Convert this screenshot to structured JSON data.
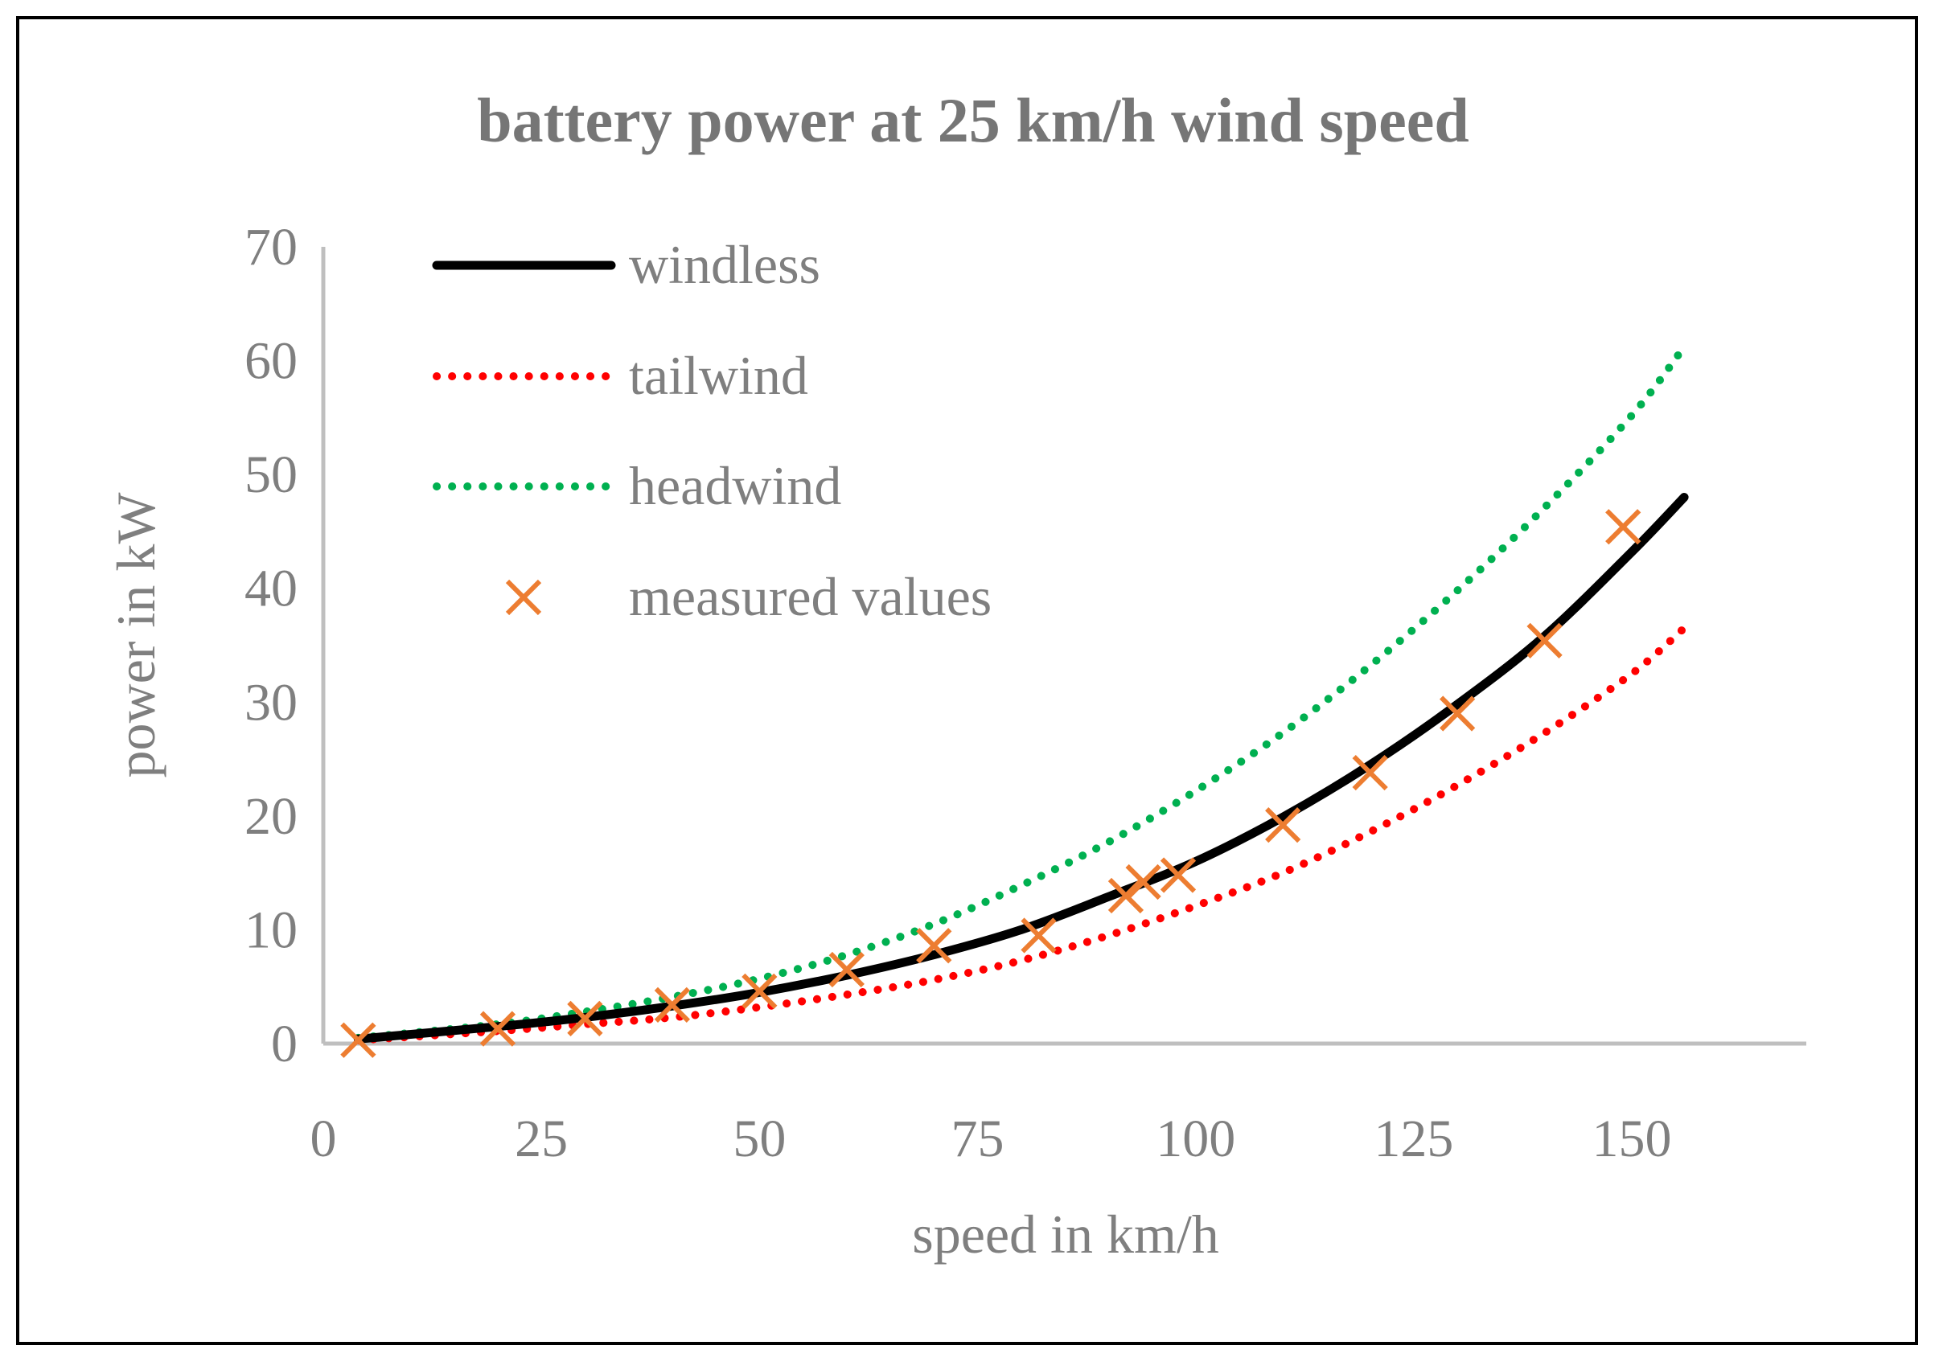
{
  "chart_data": {
    "type": "line",
    "title": "battery power at 25 km/h wind speed",
    "xlabel": "speed in km/h",
    "ylabel": "power in kW",
    "xlim": [
      0,
      170
    ],
    "ylim": [
      0,
      70
    ],
    "xticks": [
      0,
      25,
      50,
      75,
      100,
      125,
      150
    ],
    "yticks": [
      0,
      10,
      20,
      30,
      40,
      50,
      60,
      70
    ],
    "grid": false,
    "legend_position": "top-left",
    "series": [
      {
        "name": "windless",
        "style": "solid",
        "color": "#000000",
        "x": [
          4,
          20,
          30,
          40,
          50,
          60,
          70,
          80,
          90,
          100,
          110,
          120,
          130,
          140,
          150,
          156
        ],
        "y": [
          0.4,
          1.5,
          2.3,
          3.3,
          4.5,
          6.0,
          7.8,
          10.0,
          12.9,
          16.0,
          19.9,
          24.5,
          29.8,
          35.8,
          43.2,
          48.0
        ]
      },
      {
        "name": "tailwind",
        "style": "dotted",
        "color": "#ff0000",
        "x": [
          4,
          20,
          30,
          40,
          50,
          60,
          70,
          80,
          90,
          100,
          110,
          120,
          130,
          140,
          150,
          156
        ],
        "y": [
          0.3,
          1.1,
          1.7,
          2.3,
          3.2,
          4.3,
          5.6,
          7.3,
          9.5,
          12.1,
          15.0,
          18.6,
          22.7,
          27.3,
          32.5,
          36.5
        ]
      },
      {
        "name": "headwind",
        "style": "dotted",
        "color": "#00b050",
        "x": [
          4,
          20,
          30,
          40,
          50,
          60,
          70,
          80,
          90,
          100,
          110,
          120,
          130,
          140,
          150,
          156
        ],
        "y": [
          0.5,
          1.7,
          2.8,
          4.1,
          5.7,
          7.8,
          10.5,
          13.9,
          17.7,
          22.2,
          27.3,
          33.2,
          39.8,
          47.1,
          55.2,
          61.2
        ]
      },
      {
        "name": "measured values",
        "style": "marker-x",
        "color": "#ed7d31",
        "x": [
          4,
          20,
          30,
          40,
          50,
          60,
          70,
          82,
          92,
          94,
          98,
          110,
          120,
          130,
          140,
          149
        ],
        "y": [
          0.3,
          1.3,
          2.2,
          3.4,
          4.6,
          6.5,
          8.6,
          9.5,
          13.0,
          14.2,
          14.8,
          19.2,
          23.8,
          29.0,
          35.4,
          45.4
        ]
      }
    ]
  }
}
